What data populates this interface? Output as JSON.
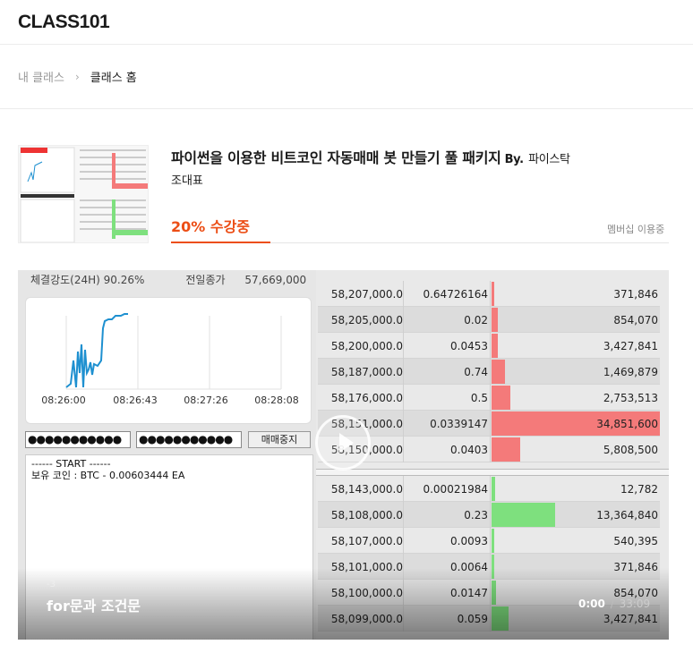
{
  "header": {
    "logo": "CLASS101"
  },
  "breadcrumb": {
    "parent": "내 클래스",
    "current": "클래스 홈"
  },
  "course": {
    "title": "파이썬을 이용한 비트코인 자동매매 봇 만들기 풀 패키지",
    "by_label": "By.",
    "author_line1": "파이스탁",
    "author_line2": "조대표",
    "progress_text": "20% 수강중",
    "progress_percent": 20,
    "membership_label": "멤버십 이용중"
  },
  "video": {
    "left_panel": {
      "stat_label": "체결강도(24H) 90.26%",
      "prev_close_label": "전일종가",
      "prev_close_value": "57,669,000",
      "chart_x_ticks": [
        "08:26:00",
        "08:26:43",
        "08:27:26",
        "08:28:08"
      ],
      "password1": "●●●●●●●●●●●",
      "password2": "●●●●●●●●●●●",
      "stop_button": "매매중지",
      "log_start": "------ START ------",
      "log_line": "보유 코인 : BTC - 0.00603444 EA"
    },
    "orderbook_asks": [
      {
        "price": "58,207,000.0",
        "qty": "0.64726164",
        "total": "371,846",
        "bar": 0.015
      },
      {
        "price": "58,205,000.0",
        "qty": "0.02",
        "total": "854,070",
        "bar": 0.035
      },
      {
        "price": "58,200,000.0",
        "qty": "0.0453",
        "total": "3,427,841",
        "bar": 0.035
      },
      {
        "price": "58,187,000.0",
        "qty": "0.74",
        "total": "1,469,879",
        "bar": 0.08
      },
      {
        "price": "58,176,000.0",
        "qty": "0.5",
        "total": "2,753,513",
        "bar": 0.11
      },
      {
        "price": "58,151,000.0",
        "qty": "0.0339147",
        "total": "34,851,600",
        "bar": 1.0
      },
      {
        "price": "58,150,000.0",
        "qty": "0.0403",
        "total": "5,808,500",
        "bar": 0.17
      }
    ],
    "orderbook_bids": [
      {
        "price": "58,143,000.0",
        "qty": "0.00021984",
        "total": "12,782",
        "bar": 0.02
      },
      {
        "price": "58,108,000.0",
        "qty": "0.23",
        "total": "13,364,840",
        "bar": 0.38
      },
      {
        "price": "58,107,000.0",
        "qty": "0.0093",
        "total": "540,395",
        "bar": 0.015
      },
      {
        "price": "58,101,000.0",
        "qty": "0.0064",
        "total": "371,846",
        "bar": 0.015
      },
      {
        "price": "58,100,000.0",
        "qty": "0.0147",
        "total": "854,070",
        "bar": 0.025
      },
      {
        "price": "58,099,000.0",
        "qty": "0.059",
        "total": "3,427,841",
        "bar": 0.1
      }
    ],
    "chapter_number": "-3",
    "chapter_title": "for문과 조건문",
    "current_time": "0:00",
    "time_separator": "/",
    "duration": "33:09"
  },
  "colors": {
    "accent": "#ec4e16",
    "ask_bar": "#f47a7a",
    "bid_bar": "#7ee07e",
    "chart_line": "#1e90d0"
  }
}
